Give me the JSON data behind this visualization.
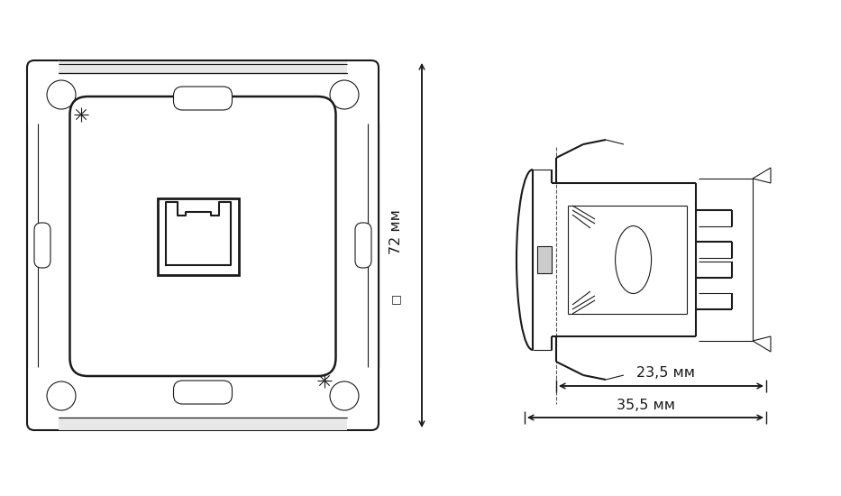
{
  "bg_color": "#ffffff",
  "line_color": "#1a1a1a",
  "lw_main": 1.5,
  "lw_thin": 0.8,
  "lw_dim": 1.1,
  "dim_color": "#1a1a1a",
  "dim_fontsize": 11.5,
  "label_72": "72 мм",
  "label_235": "23,5 мм",
  "label_355": "35,5 мм",
  "fig_width": 9.33,
  "fig_height": 5.5
}
